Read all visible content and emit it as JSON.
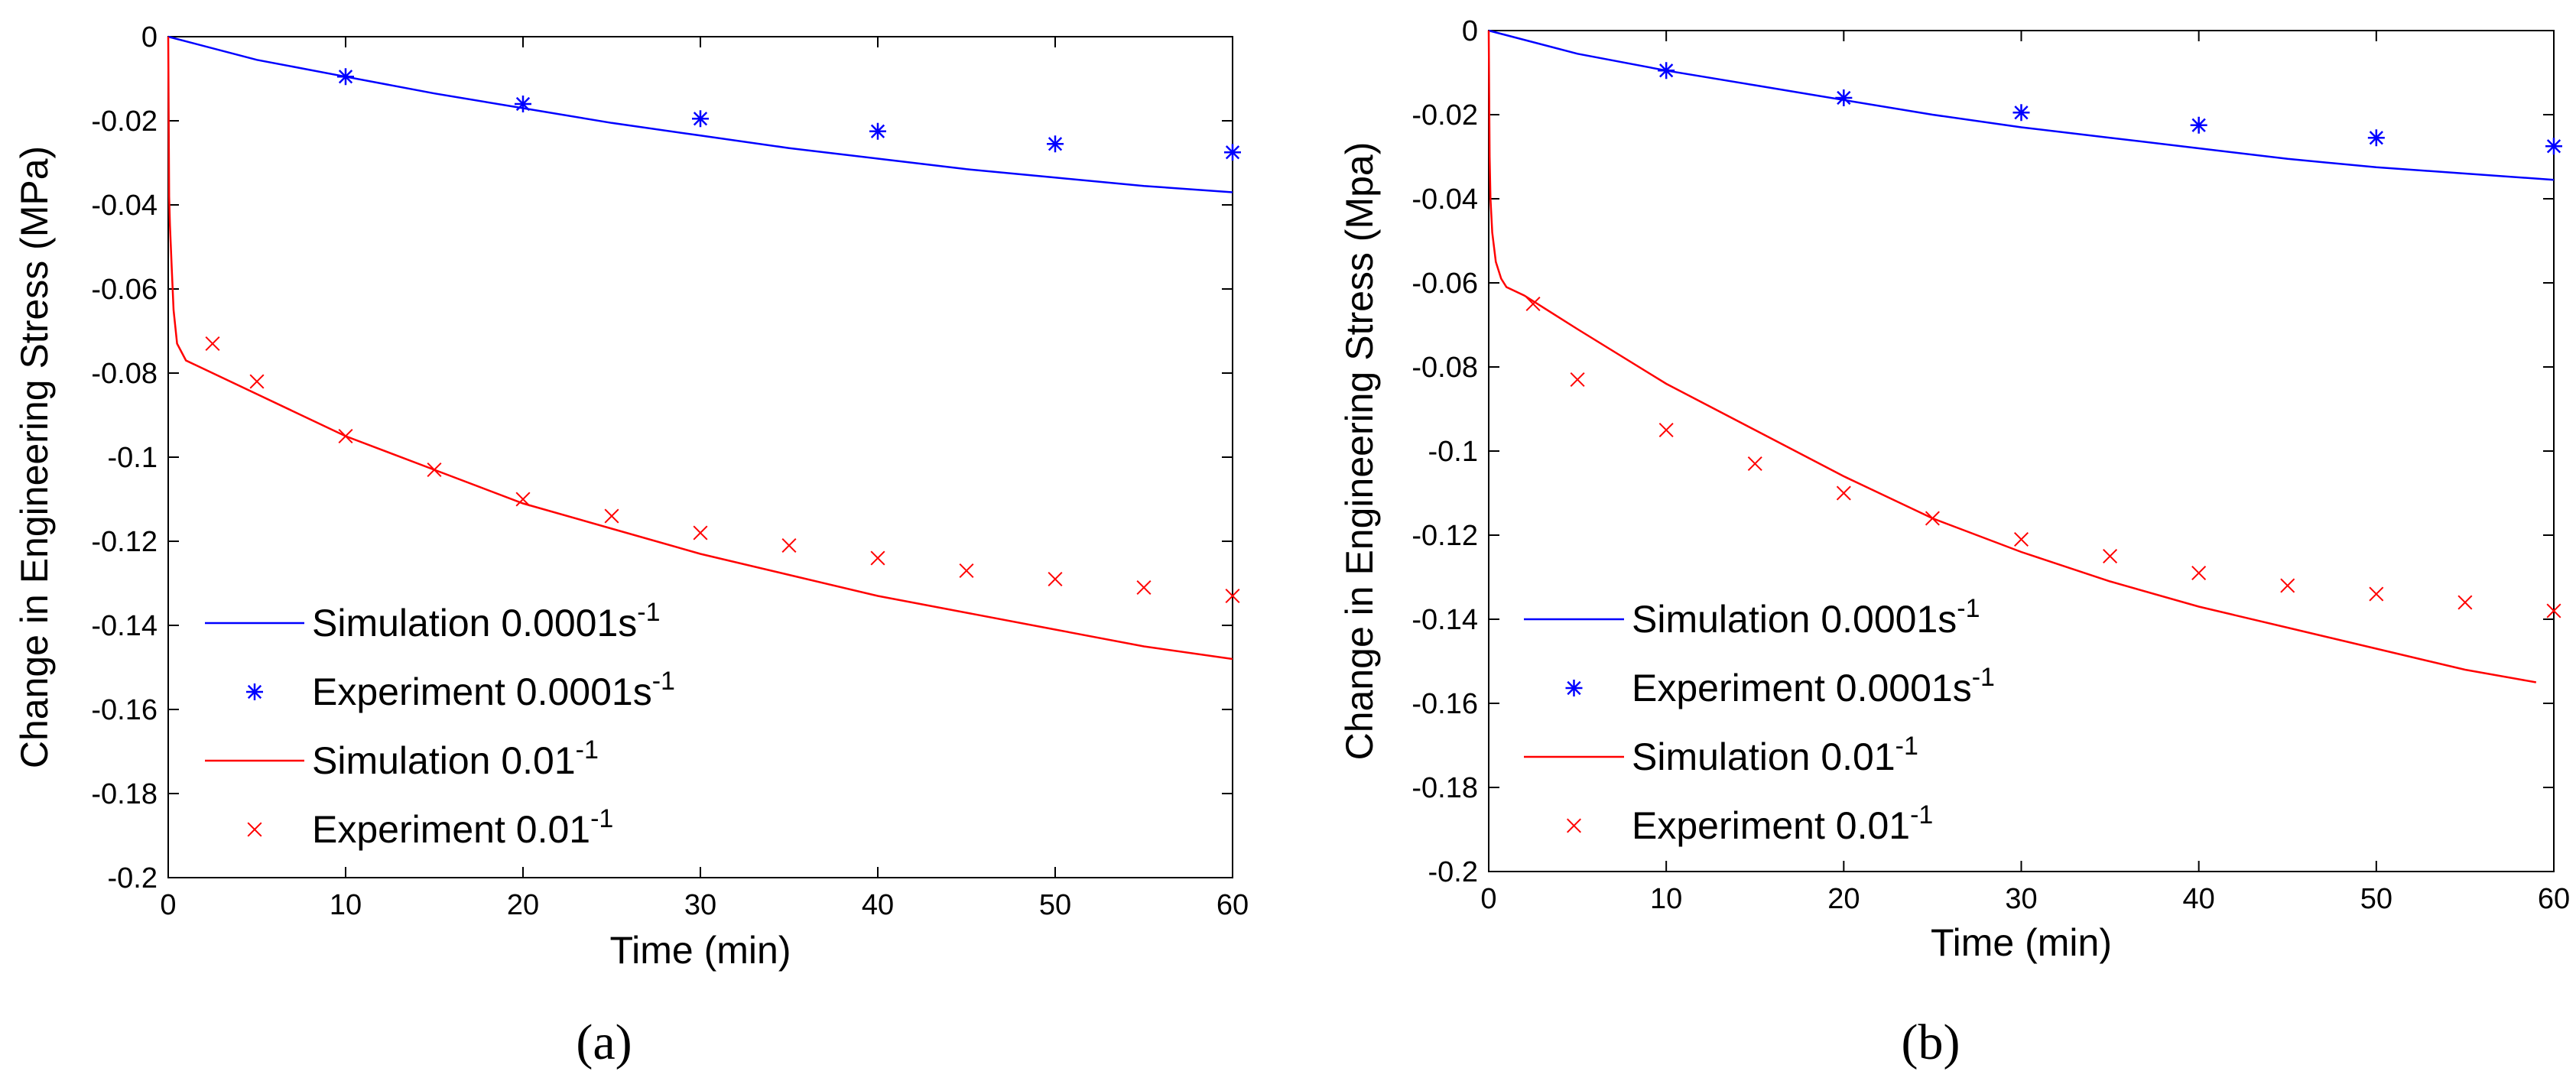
{
  "chart_data": [
    {
      "type": "line",
      "panel_label": "a",
      "xlabel": "Time (min)",
      "ylabel": "Change in Engineering Stress (MPa)",
      "xlim": [
        0,
        60
      ],
      "ylim": [
        -0.2,
        0
      ],
      "xticks": [
        "0",
        "10",
        "20",
        "30",
        "40",
        "50",
        "60"
      ],
      "yticks": [
        "0",
        "-0.02",
        "-0.04",
        "-0.06",
        "-0.08",
        "-0.1",
        "-0.12",
        "-0.14",
        "-0.16",
        "-0.18",
        "-0.2"
      ],
      "series": [
        {
          "name": "Simulation 0.0001s-1",
          "legend_base": "Simulation 0.0001s",
          "legend_sup": "-1",
          "kind": "line",
          "color": "#0000ff",
          "x": [
            0,
            5,
            10,
            15,
            20,
            25,
            30,
            35,
            40,
            45,
            50,
            55,
            60
          ],
          "y": [
            0,
            -0.0055,
            -0.0095,
            -0.0135,
            -0.017,
            -0.0205,
            -0.0235,
            -0.0265,
            -0.029,
            -0.0315,
            -0.0335,
            -0.0355,
            -0.037
          ]
        },
        {
          "name": "Experiment 0.0001s-1",
          "legend_base": "Experiment 0.0001s",
          "legend_sup": "-1",
          "kind": "marker",
          "marker": "asterisk",
          "color": "#0000ff",
          "x": [
            10,
            20,
            30,
            40,
            50,
            60
          ],
          "y": [
            -0.0095,
            -0.016,
            -0.0195,
            -0.0225,
            -0.0255,
            -0.0275
          ]
        },
        {
          "name": "Simulation 0.01-1",
          "legend_base": "Simulation 0.01",
          "legend_sup": "-1",
          "kind": "line",
          "color": "#ff0000",
          "x": [
            0,
            0.05,
            0.1,
            0.2,
            0.3,
            0.5,
            1,
            2,
            5,
            10,
            15,
            20,
            25,
            30,
            35,
            40,
            45,
            50,
            55,
            60
          ],
          "y": [
            0,
            -0.038,
            -0.045,
            -0.055,
            -0.065,
            -0.073,
            -0.077,
            -0.079,
            -0.085,
            -0.095,
            -0.103,
            -0.111,
            -0.117,
            -0.123,
            -0.128,
            -0.133,
            -0.137,
            -0.141,
            -0.145,
            -0.148
          ]
        },
        {
          "name": "Experiment 0.01-1",
          "legend_base": "Experiment 0.01",
          "legend_sup": "-1",
          "kind": "marker",
          "marker": "x",
          "color": "#ff0000",
          "x": [
            2.5,
            5,
            10,
            15,
            20,
            25,
            30,
            35,
            40,
            45,
            50,
            55,
            60
          ],
          "y": [
            -0.073,
            -0.082,
            -0.095,
            -0.103,
            -0.11,
            -0.114,
            -0.118,
            -0.121,
            -0.124,
            -0.127,
            -0.129,
            -0.131,
            -0.133
          ]
        }
      ]
    },
    {
      "type": "line",
      "panel_label": "b",
      "xlabel": "Time (min)",
      "ylabel": "Change in Engineering Stress (Mpa)",
      "xlim": [
        0,
        60
      ],
      "ylim": [
        -0.2,
        0
      ],
      "xticks": [
        "0",
        "10",
        "20",
        "30",
        "40",
        "50",
        "60"
      ],
      "yticks": [
        "0",
        "-0.02",
        "-0.04",
        "-0.06",
        "-0.08",
        "-0.1",
        "-0.12",
        "-0.14",
        "-0.16",
        "-0.18",
        "-0.2"
      ],
      "series": [
        {
          "name": "Simulation 0.0001s-1",
          "legend_base": "Simulation 0.0001s",
          "legend_sup": "-1",
          "kind": "line",
          "color": "#0000ff",
          "x": [
            0,
            5,
            10,
            15,
            20,
            25,
            30,
            35,
            40,
            45,
            50,
            55,
            60
          ],
          "y": [
            0,
            -0.0055,
            -0.0095,
            -0.013,
            -0.0165,
            -0.02,
            -0.023,
            -0.0255,
            -0.028,
            -0.0305,
            -0.0325,
            -0.034,
            -0.0355
          ]
        },
        {
          "name": "Experiment 0.0001s-1",
          "legend_base": "Experiment 0.0001s",
          "legend_sup": "-1",
          "kind": "marker",
          "marker": "asterisk",
          "color": "#0000ff",
          "x": [
            10,
            20,
            30,
            40,
            50,
            60
          ],
          "y": [
            -0.0095,
            -0.016,
            -0.0195,
            -0.0225,
            -0.0255,
            -0.0275
          ]
        },
        {
          "name": "Simulation 0.01-1",
          "legend_base": "Simulation 0.01",
          "legend_sup": "-1",
          "kind": "line",
          "color": "#ff0000",
          "x": [
            0,
            0.05,
            0.1,
            0.2,
            0.4,
            0.7,
            1,
            2,
            5,
            10,
            15,
            20,
            25,
            30,
            35,
            40,
            45,
            50,
            55,
            59
          ],
          "y": [
            0,
            -0.03,
            -0.04,
            -0.048,
            -0.055,
            -0.059,
            -0.061,
            -0.063,
            -0.071,
            -0.084,
            -0.095,
            -0.106,
            -0.116,
            -0.124,
            -0.131,
            -0.137,
            -0.142,
            -0.147,
            -0.152,
            -0.155
          ]
        },
        {
          "name": "Experiment 0.01-1",
          "legend_base": "Experiment 0.01",
          "legend_sup": "-1",
          "kind": "marker",
          "marker": "x",
          "color": "#ff0000",
          "x": [
            2.5,
            5,
            10,
            15,
            20,
            25,
            30,
            35,
            40,
            45,
            50,
            55,
            60
          ],
          "y": [
            -0.065,
            -0.083,
            -0.095,
            -0.103,
            -0.11,
            -0.116,
            -0.121,
            -0.125,
            -0.129,
            -0.132,
            -0.134,
            -0.136,
            -0.138
          ]
        }
      ]
    }
  ],
  "captions": {
    "a": "(a)",
    "b": "(b)"
  }
}
